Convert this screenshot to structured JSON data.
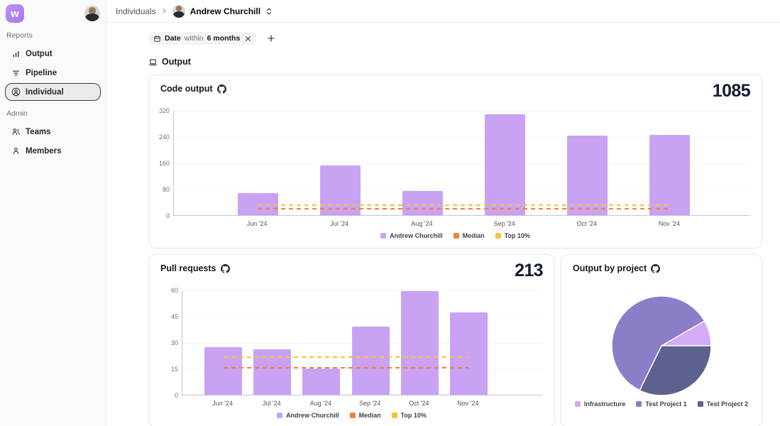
{
  "app": {
    "logo_letter": "w"
  },
  "sidebar": {
    "sections": [
      {
        "label": "Reports",
        "items": [
          {
            "label": "Output",
            "icon": "bar-chart-icon",
            "selected": false
          },
          {
            "label": "Pipeline",
            "icon": "pipeline-icon",
            "selected": false
          },
          {
            "label": "Individual",
            "icon": "person-circle-icon",
            "selected": true
          }
        ]
      },
      {
        "label": "Admin",
        "items": [
          {
            "label": "Teams",
            "icon": "users-icon",
            "selected": false
          },
          {
            "label": "Members",
            "icon": "user-icon",
            "selected": false
          }
        ]
      }
    ]
  },
  "header": {
    "breadcrumb_root": "Individuals",
    "person_name": "Andrew Churchill"
  },
  "filter_bar": {
    "chip": {
      "field": "Date",
      "operator": "within",
      "value": "6 months"
    }
  },
  "section_header": {
    "title": "Output"
  },
  "colors": {
    "accent_purple": "#c9a2f3",
    "median_orange": "#f0803c",
    "top10_yellow": "#f2c437",
    "pie_light": "#d4abf7",
    "pie_mid": "#8b7dc8",
    "pie_dark": "#5c6190",
    "total_text": "#141b2e"
  },
  "chart_data": [
    {
      "id": "code_output",
      "type": "bar",
      "title": "Code output",
      "total": "1085",
      "source_icon": "github-icon",
      "categories": [
        "Jun '24",
        "Jul '24",
        "Aug '24",
        "Sep '24",
        "Oct '24",
        "Nov '24"
      ],
      "series": [
        {
          "name": "Andrew Churchill",
          "type": "bar",
          "color": "#c9a2f3",
          "values": [
            66,
            151,
            74,
            307,
            243,
            244
          ]
        },
        {
          "name": "Median",
          "type": "dashed-line",
          "color": "#f0803c",
          "value": 21
        },
        {
          "name": "Top 10%",
          "type": "dashed-line",
          "color": "#f2c437",
          "value": 32
        }
      ],
      "yticks": [
        0,
        80,
        160,
        240,
        320
      ],
      "ylim": [
        0,
        320
      ],
      "grid": true,
      "legend": [
        "Andrew Churchill",
        "Median",
        "Top 10%"
      ],
      "legend_position": "bottom"
    },
    {
      "id": "pull_requests",
      "type": "bar",
      "title": "Pull requests",
      "total": "213",
      "source_icon": "github-icon",
      "categories": [
        "Jun '24",
        "Jul '24",
        "Aug '24",
        "Sep '24",
        "Oct '24",
        "Nov '24"
      ],
      "series": [
        {
          "name": "Andrew Churchill",
          "type": "bar",
          "color": "#c9a2f3",
          "values": [
            27,
            26,
            15,
            39,
            59,
            47
          ]
        },
        {
          "name": "Median",
          "type": "dashed-line",
          "color": "#f0803c",
          "value": 16
        },
        {
          "name": "Top 10%",
          "type": "dashed-line",
          "color": "#f2c437",
          "value": 22
        }
      ],
      "yticks": [
        0,
        15,
        30,
        45,
        60
      ],
      "ylim": [
        0,
        60
      ],
      "grid": true,
      "legend": [
        "Andrew Churchill",
        "Median",
        "Top 10%"
      ],
      "legend_position": "bottom"
    },
    {
      "id": "output_by_project",
      "type": "pie",
      "title": "Output by project",
      "source_icon": "github-icon",
      "slices": [
        {
          "label": "Infrastructure",
          "pct": 8.3,
          "color": "#d4abf7"
        },
        {
          "label": "Test Project 1",
          "pct": 59.4,
          "color": "#8b7dc8"
        },
        {
          "label": "Test Project 2",
          "pct": 32.3,
          "color": "#5c6190"
        }
      ],
      "start_angle_deg": 60,
      "render_order": [
        0,
        2,
        1
      ],
      "legend_position": "bottom"
    }
  ]
}
